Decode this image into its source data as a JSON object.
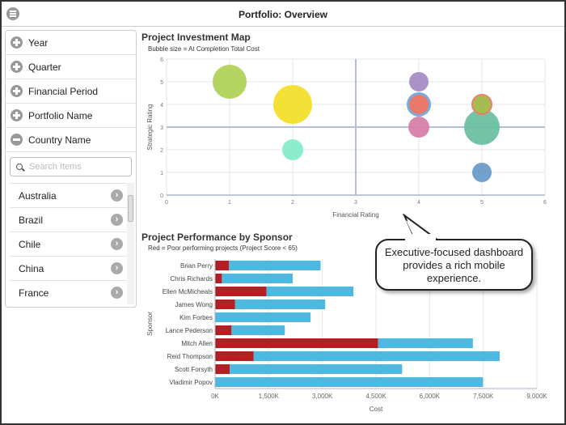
{
  "header": {
    "title": "Portfolio: Overview",
    "menu_icon": "hamburger-icon"
  },
  "sidebar": {
    "facets": [
      {
        "label": "Year",
        "state": "plus"
      },
      {
        "label": "Quarter",
        "state": "plus"
      },
      {
        "label": "Financial Period",
        "state": "plus"
      },
      {
        "label": "Portfolio Name",
        "state": "plus"
      },
      {
        "label": "Country Name",
        "state": "minus"
      }
    ],
    "search_placeholder": "Search Items",
    "countries": [
      "Australia",
      "Brazil",
      "Chile",
      "China",
      "France"
    ]
  },
  "callout": {
    "text": "Executive-focused dashboard provides a rich mobile experience."
  },
  "chart_data": [
    {
      "type": "scatter",
      "title": "Project Investment Map",
      "subtitle": "Bubble size = At Completion Total Cost",
      "xlabel": "Financial Rating",
      "ylabel": "Strategic Rating",
      "xlim": [
        0,
        6
      ],
      "ylim": [
        0,
        6
      ],
      "xticks": [
        "0",
        "1",
        "2",
        "3",
        "4",
        "5",
        "6"
      ],
      "yticks": [
        "0",
        "1",
        "2",
        "3",
        "4",
        "5",
        "6"
      ],
      "grid": true,
      "quadrant_lines": {
        "x": 3,
        "y": 3
      },
      "points": [
        {
          "x": 1,
          "y": 5,
          "size": 21,
          "color": "#b0d25a"
        },
        {
          "x": 2,
          "y": 4,
          "size": 24,
          "color": "#f2e02a"
        },
        {
          "x": 2,
          "y": 2,
          "size": 13,
          "color": "#86ecc9"
        },
        {
          "x": 4,
          "y": 5,
          "size": 12,
          "color": "#a68cc4"
        },
        {
          "x": 4,
          "y": 4,
          "size": 15,
          "color": "#6fa8dc"
        },
        {
          "x": 4,
          "y": 4,
          "size": 12,
          "color": "#f07662"
        },
        {
          "x": 4,
          "y": 3,
          "size": 13,
          "color": "#d77fa8"
        },
        {
          "x": 5,
          "y": 3,
          "size": 22,
          "color": "#6cc1a2"
        },
        {
          "x": 5,
          "y": 4,
          "size": 13,
          "color": "#f07662"
        },
        {
          "x": 5,
          "y": 4,
          "size": 11,
          "color": "#a0c050"
        },
        {
          "x": 5,
          "y": 1,
          "size": 12,
          "color": "#6a9cc8"
        }
      ]
    },
    {
      "type": "bar",
      "orientation": "horizontal",
      "stacked": true,
      "title": "Project Performance by Sponsor",
      "subtitle": "Red = Poor performing projects (Project Score < 65)",
      "xlabel": "Cost",
      "ylabel": "Sponsor",
      "xlim": [
        0,
        9000
      ],
      "xticks": [
        "0K",
        "1,500K",
        "3,000K",
        "4,500K",
        "6,000K",
        "7,500K",
        "9,000K"
      ],
      "categories": [
        "Brian Perry",
        "Chris Richards",
        "Ellen McMicheals",
        "James Wong",
        "Kim Forbes",
        "Lance Pederson",
        "Mitch Allen",
        "Reid Thompson",
        "Scott Forsyth",
        "Vladimir Popov"
      ],
      "series": [
        {
          "color": "#b22024",
          "values": [
            390,
            190,
            1440,
            560,
            0,
            460,
            4560,
            1080,
            410,
            0
          ]
        },
        {
          "color": "#4db8e0",
          "values": [
            2560,
            1980,
            2430,
            2520,
            2670,
            1490,
            2650,
            6880,
            4820,
            7490
          ]
        }
      ]
    }
  ]
}
